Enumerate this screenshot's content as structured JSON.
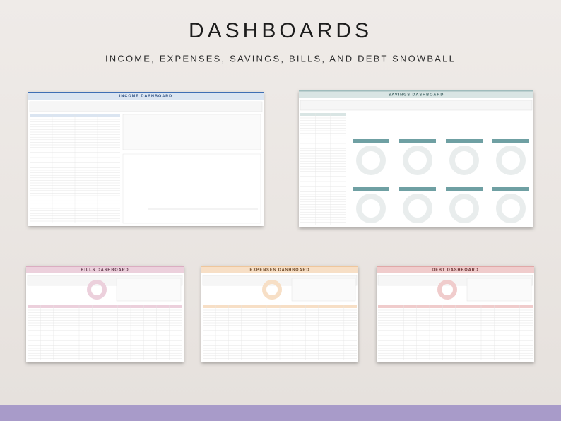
{
  "header": {
    "title": "DASHBOARDS",
    "subtitle": "INCOME, EXPENSES, SAVINGS, BILLS, AND DEBT SNOWBALL"
  },
  "panels": [
    {
      "title": "INCOME DASHBOARD"
    },
    {
      "title": "SAVINGS DASHBOARD"
    },
    {
      "title": "BILLS DASHBOARD"
    },
    {
      "title": "EXPENSES DASHBOARD"
    },
    {
      "title": "DEBT DASHBOARD"
    }
  ]
}
